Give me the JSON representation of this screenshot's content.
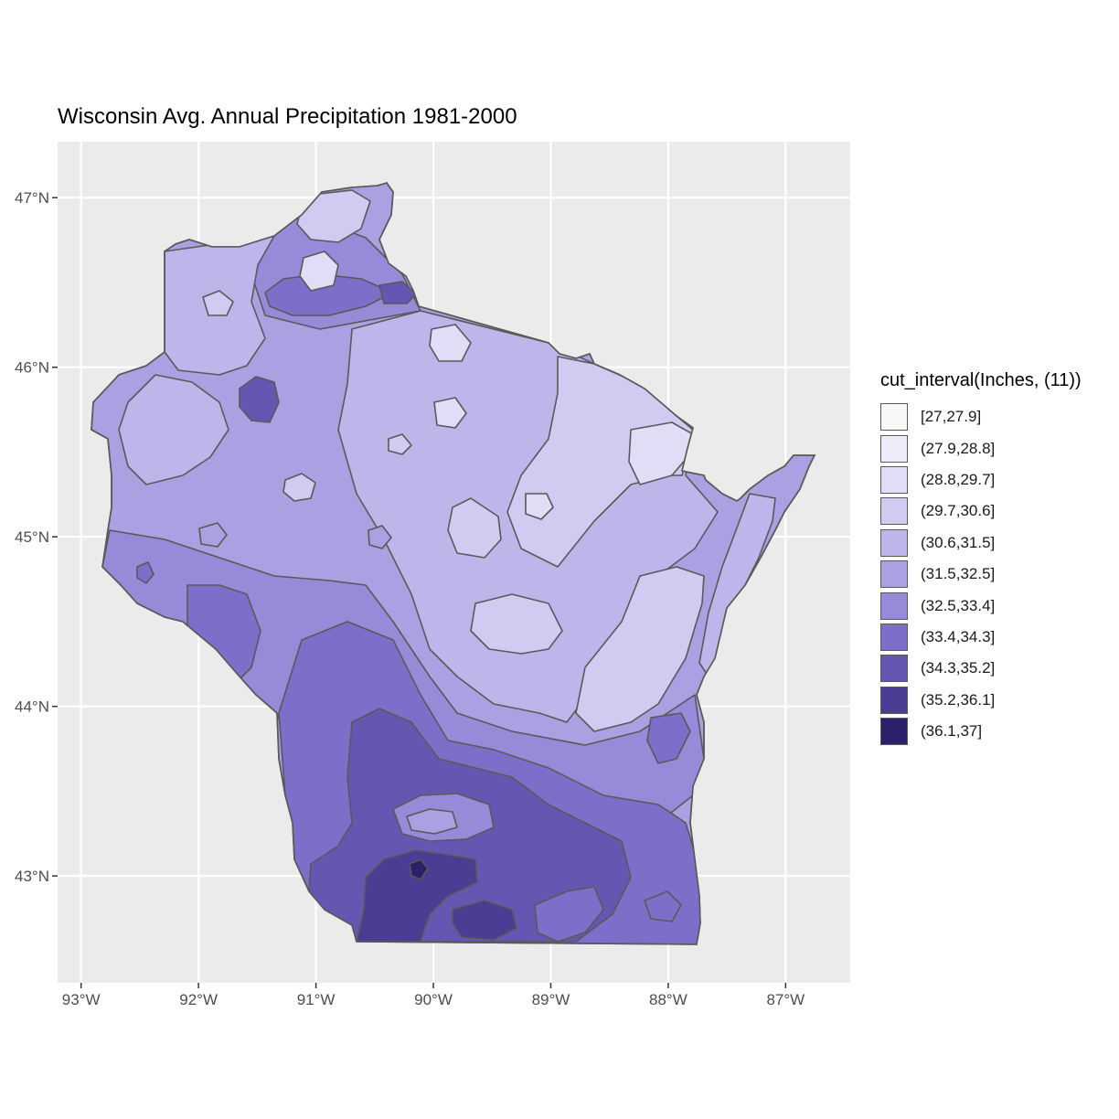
{
  "title": "Wisconsin Avg. Annual Precipitation 1981-2000",
  "chart_data": {
    "type": "contour map",
    "region": "Wisconsin",
    "variable": "Inches",
    "x_ticks": [
      {
        "lon": -93,
        "label": "93°W"
      },
      {
        "lon": -92,
        "label": "92°W"
      },
      {
        "lon": -91,
        "label": "91°W"
      },
      {
        "lon": -90,
        "label": "90°W"
      },
      {
        "lon": -89,
        "label": "89°W"
      },
      {
        "lon": -88,
        "label": "88°W"
      },
      {
        "lon": -87,
        "label": "87°W"
      }
    ],
    "y_ticks": [
      {
        "lat": 47,
        "label": "47°N"
      },
      {
        "lat": 46,
        "label": "46°N"
      },
      {
        "lat": 45,
        "label": "45°N"
      },
      {
        "lat": 44,
        "label": "44°N"
      },
      {
        "lat": 43,
        "label": "43°N"
      }
    ],
    "xlim": [
      -93.2,
      -86.45
    ],
    "ylim": [
      42.37,
      47.33
    ],
    "grid": true,
    "legend_position": "right",
    "legend": {
      "title": "cut_interval(Inches, (11))",
      "items": [
        {
          "label": "[27,27.9]",
          "color": "#f7f7f7"
        },
        {
          "label": "(27.9,28.8]",
          "color": "#eeecfb"
        },
        {
          "label": "(28.8,29.7]",
          "color": "#e0ddf6"
        },
        {
          "label": "(29.7,30.6]",
          "color": "#d0cbf1"
        },
        {
          "label": "(30.6,31.5]",
          "color": "#bdb6ea"
        },
        {
          "label": "(31.5,32.5]",
          "color": "#a9a1e1"
        },
        {
          "label": "(32.5,33.4]",
          "color": "#958bd8"
        },
        {
          "label": "(33.4,34.3]",
          "color": "#7c6fca"
        },
        {
          "label": "(34.3,35.2]",
          "color": "#6457b2"
        },
        {
          "label": "(35.2,36.1]",
          "color": "#4a3d93"
        },
        {
          "label": "(36.1,37]",
          "color": "#2e1f6b"
        }
      ]
    }
  }
}
